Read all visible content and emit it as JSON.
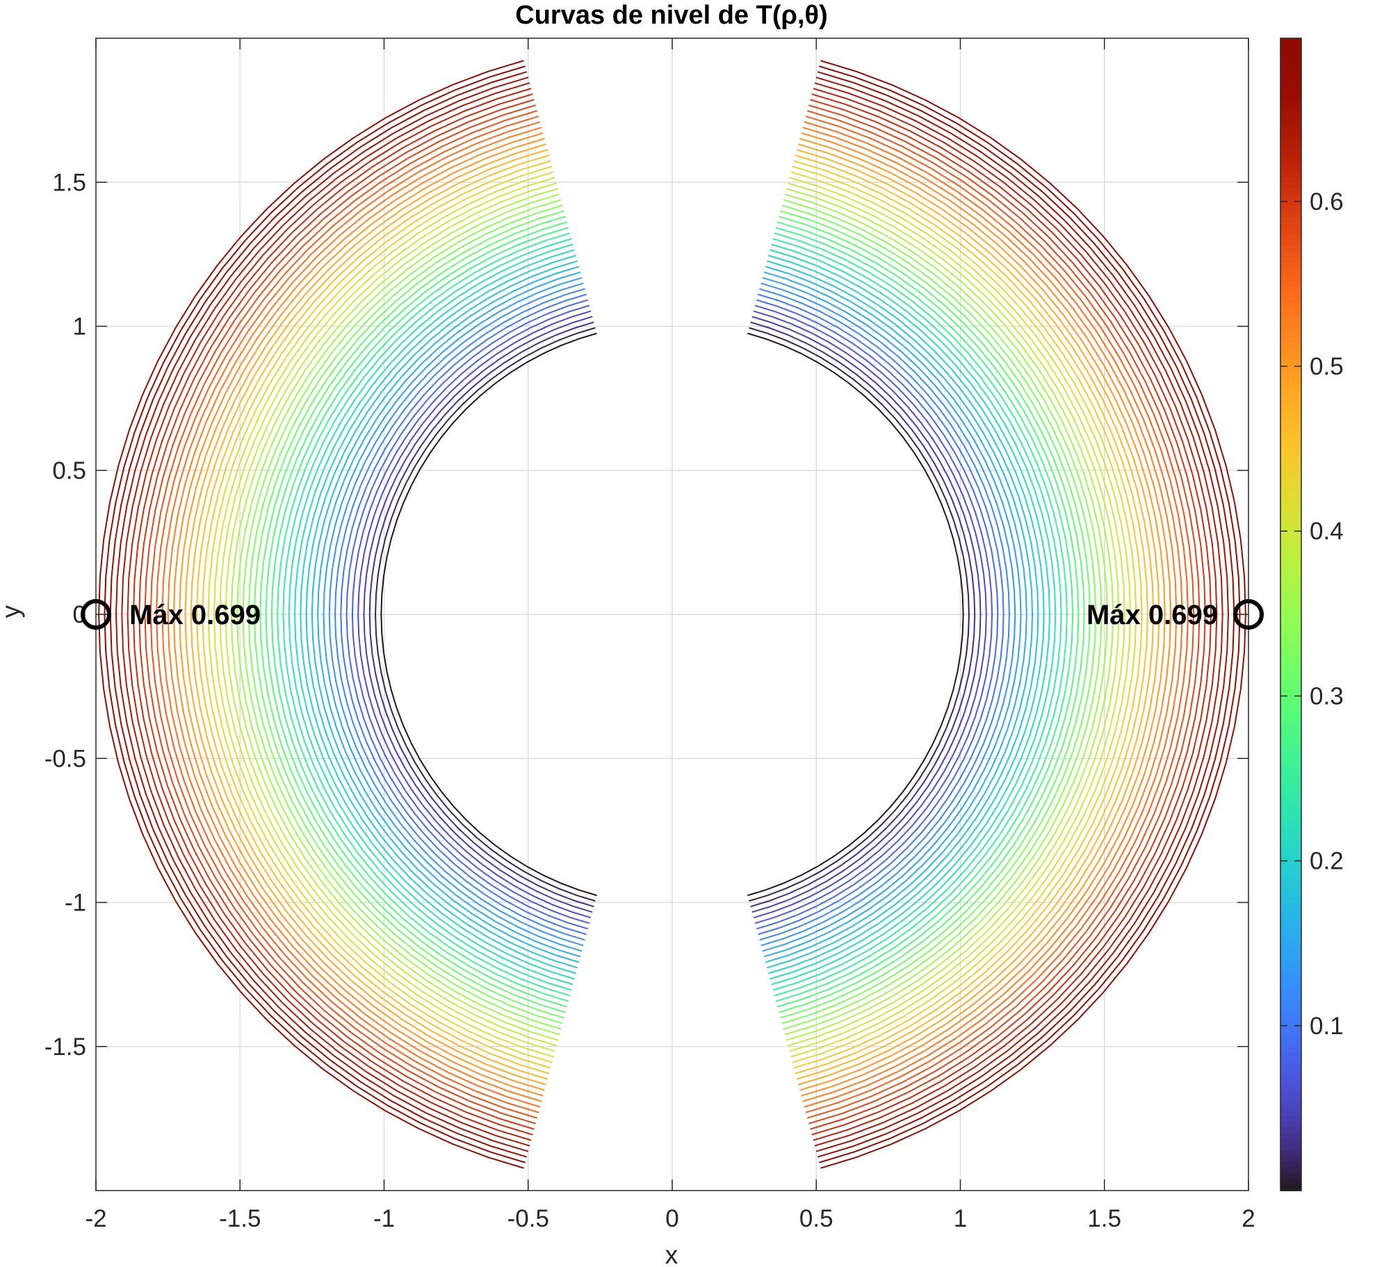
{
  "chart_data": {
    "type": "contour",
    "title": "Curvas  de  nivel  de  T(ρ,θ)",
    "xlabel": "x",
    "ylabel": "y",
    "xlim": [
      -2,
      2
    ],
    "ylim": [
      -2,
      2
    ],
    "xticks": [
      "-2",
      "-1.5",
      "-1",
      "-0.5",
      "0",
      "0.5",
      "1",
      "1.5",
      "2"
    ],
    "yticks": [
      "1.5",
      "1",
      "0.5",
      "0",
      "-0.5",
      "-1",
      "-1.5"
    ],
    "grid": true,
    "colorbar": {
      "colormap": "turbo",
      "range": [
        0.0,
        0.699
      ],
      "ticks": [
        "0.1",
        "0.2",
        "0.3",
        "0.4",
        "0.5",
        "0.6"
      ]
    },
    "contour_levels": {
      "count": 50,
      "min": 0.0,
      "max": 0.699,
      "domain": "annulus 1 ≤ ρ ≤ 2, |θ| ≤ 75° mirrored left/right"
    },
    "maxima": [
      {
        "label": "Máx 0.699",
        "x": -2,
        "y": 0
      },
      {
        "label": "Máx 0.699",
        "x": 2,
        "y": 0
      }
    ]
  }
}
